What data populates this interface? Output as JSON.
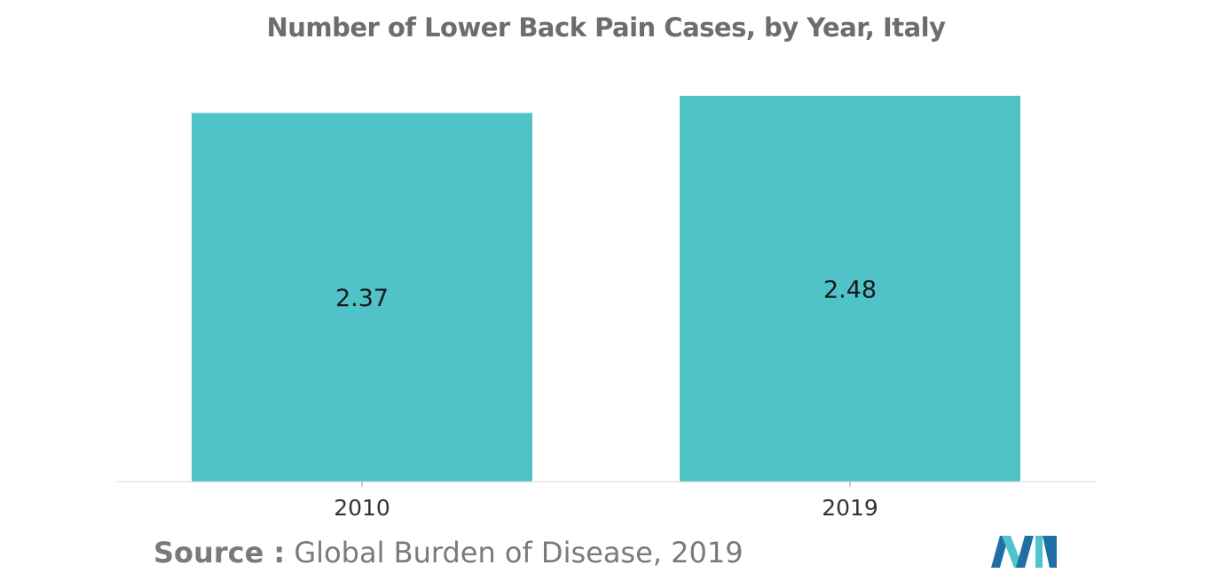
{
  "chart_data": {
    "type": "bar",
    "title": "Number of Lower Back Pain Cases, by Year, Italy",
    "categories": [
      "2010",
      "2019"
    ],
    "values": [
      2.37,
      2.48
    ],
    "data_labels": [
      "2.37",
      "2.48"
    ],
    "xlabel": "",
    "ylabel": "",
    "ylim": [
      0,
      2.48
    ],
    "grid": false,
    "bar_color": "#50c3c9"
  },
  "source": {
    "label": "Source :",
    "text": "Global Burden of Disease, 2019"
  },
  "logo": {
    "icon": "mordor-intelligence-logo-icon",
    "colors": [
      "#1f6fa5",
      "#4fc4ce"
    ]
  }
}
